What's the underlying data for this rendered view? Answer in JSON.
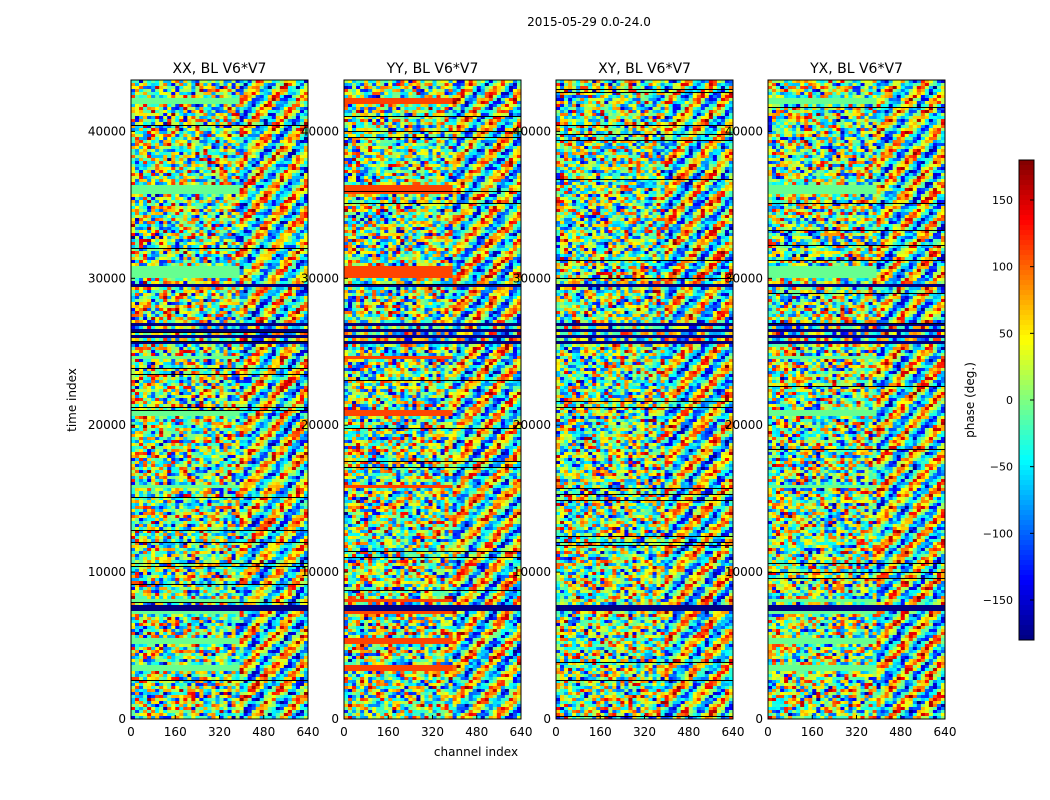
{
  "title": "2015-05-29 0.0-24.0",
  "chart_data": {
    "type": "heatmap",
    "ylabel": "time index",
    "xlabel": "channel index",
    "xlim": [
      0,
      640
    ],
    "ylim": [
      0,
      43500
    ],
    "xticks": [
      "0",
      "160",
      "320",
      "480",
      "640"
    ],
    "yticks": [
      "0",
      "10000",
      "20000",
      "30000",
      "40000"
    ],
    "panels": [
      {
        "title": "XX, BL V6*V7",
        "flag_color": "#66ff90"
      },
      {
        "title": "YY, BL V6*V7",
        "flag_color": "#ff4400"
      },
      {
        "title": "XY, BL V6*V7",
        "flag_color": "#66ff90"
      },
      {
        "title": "YX, BL V6*V7",
        "flag_color": "#66ff90"
      }
    ],
    "colorbar": {
      "label": "phase (deg.)",
      "range": [
        -180,
        180
      ],
      "ticks": [
        "150",
        "100",
        "50",
        "0",
        "−50",
        "−100",
        "−150"
      ],
      "tick_values": [
        150,
        100,
        50,
        0,
        -50,
        -100,
        -150
      ],
      "colormap": "jet"
    }
  }
}
